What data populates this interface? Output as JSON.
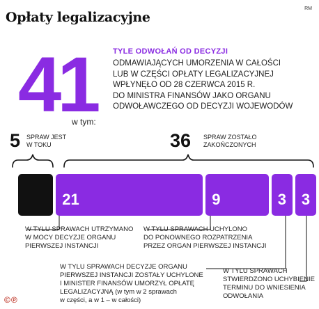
{
  "header": {
    "title": "Opłaty legalizacyjne",
    "source": "RM"
  },
  "main": {
    "total": "41",
    "headline": "TYLE ODWOŁAŃ OD DECYZJI",
    "description_lines": [
      "ODMAWIAJĄCYCH UMORZENIA W CAŁOŚCI",
      "LUB W CZĘŚCI OPŁATY LEGALIZACYJNEJ",
      "WPŁYNĘŁO OD 28 CZERWCA 2015 R.",
      "DO MINISTRA FINANSÓW JAKO ORGANU",
      "ODWOŁAWCZEGO OD DECYZJI WOJEWODÓW"
    ],
    "in_which": "w tym:"
  },
  "groups": {
    "pending": {
      "count": "5",
      "label_lines": [
        "SPRAW JEST",
        "W TOKU"
      ]
    },
    "closed": {
      "count": "36",
      "label_lines": [
        "SPRAW ZOSTAŁO",
        "ZAKOŃCZONYCH"
      ]
    }
  },
  "chart_data": {
    "type": "bar",
    "orientation": "horizontal-stacked",
    "categories": [
      "W tym sprawy w toku",
      "Decyzje organu pierwszej instancji utrzymane",
      "Decyzje uchylone, sprawy do ponownego rozpatrzenia",
      "Decyzje uchylone, Minister Finansów umorzył opłatę",
      "Stwierdzono uchybienie terminu do wniesienia odwołania"
    ],
    "values": [
      5,
      21,
      9,
      3,
      3
    ],
    "labels": [
      "",
      "21",
      "9",
      "3",
      "3"
    ],
    "total": 41,
    "colors": [
      "#111111",
      "#8a2be2",
      "#8a2be2",
      "#8a2be2",
      "#8a2be2"
    ]
  },
  "notes": {
    "upheld": [
      "W TYLU SPRAWACH UTRZYMANO",
      "W MOCY DECYZJE ORGANU",
      "PIERWSZEJ INSTANCJI"
    ],
    "reconsider": [
      "W TYLU SPRAWACH UCHYLONO",
      "DO PONOWNEGO ROZPATRZENIA",
      "PRZEZ ORGAN PIERWSZEJ INSTANCJI"
    ],
    "cancelled": {
      "line1": "W TYLU SPRAWACH DECYZJE ORGANU",
      "line2": "PIERWSZEJ INSTANCJI ZOSTAŁY UCHYLONE",
      "line3": "I MINISTER FINANSÓW UMORZYŁ OPŁATĘ",
      "line4a": "LEGALIZACYJNĄ",
      "line4b": " (w tym w 2 sprawach",
      "line5": "w części, a w 1 – w całości)"
    },
    "late": [
      "W TYLU SPRAWACH",
      "STWIERDZONO UCHYBIENIE",
      "TERMINU DO WNIESIENIA",
      "ODWOŁANIA"
    ]
  },
  "footer": {
    "logo_text": "©℗"
  }
}
